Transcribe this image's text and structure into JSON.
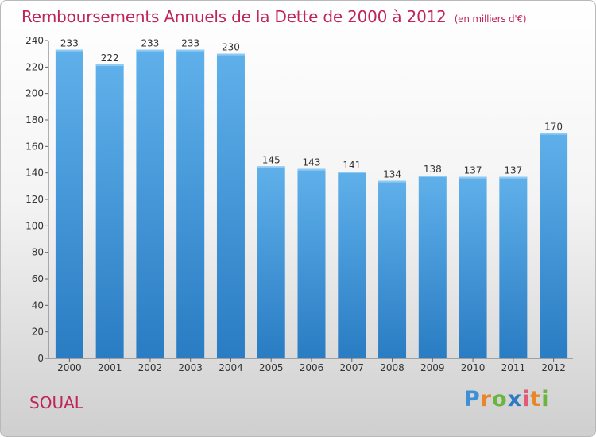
{
  "title": "Remboursements Annuels de la Dette de 2000 à 2012",
  "subtitle": "(en milliers d'€)",
  "location": "SOUAL",
  "logo": {
    "text": "Proxiti",
    "letters": [
      {
        "ch": "P",
        "color": "#3d8fd6"
      },
      {
        "ch": "r",
        "color": "#e8862a"
      },
      {
        "ch": "o",
        "color": "#6bb43f"
      },
      {
        "ch": "x",
        "color": "#2f79c4"
      },
      {
        "ch": "i",
        "color": "#e05a7a"
      },
      {
        "ch": "t",
        "color": "#e8862a"
      },
      {
        "ch": "i",
        "color": "#6bb43f"
      }
    ]
  },
  "colors": {
    "bar_top": "#5fb0ea",
    "bar_bottom": "#2a7cc3",
    "text": "#333333",
    "accent": "#c0255a"
  },
  "chart_data": {
    "type": "bar",
    "title": "Remboursements Annuels de la Dette de 2000 à 2012",
    "subtitle": "(en milliers d'€)",
    "categories": [
      "2000",
      "2001",
      "2002",
      "2003",
      "2004",
      "2005",
      "2006",
      "2007",
      "2008",
      "2009",
      "2010",
      "2011",
      "2012"
    ],
    "values": [
      233,
      222,
      233,
      233,
      230,
      145,
      143,
      141,
      134,
      138,
      137,
      137,
      170
    ],
    "ylim": [
      0,
      240
    ],
    "yticks": [
      0,
      20,
      40,
      60,
      80,
      100,
      120,
      140,
      160,
      180,
      200,
      220,
      240
    ],
    "grid": false,
    "data_labels": true
  }
}
